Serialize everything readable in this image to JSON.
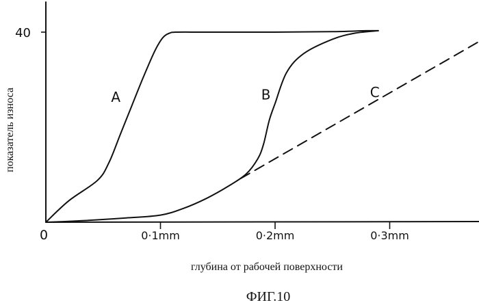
{
  "chart_data": {
    "type": "line",
    "title": "ФИГ.10",
    "xlabel": "глубина от рабочей поверхности",
    "ylabel": "показатель износа",
    "x_tick_labels": [
      "0",
      "0·1mm",
      "0·2mm",
      "0·3mm"
    ],
    "x_ticks": [
      0,
      0.1,
      0.2,
      0.3
    ],
    "y_tick_labels": [
      "40"
    ],
    "y_ticks": [
      40
    ],
    "xlim": [
      0,
      0.38
    ],
    "ylim": [
      0,
      45
    ],
    "grid": false,
    "legend": "none",
    "series": [
      {
        "name": "A",
        "style": "solid",
        "label_at": [
          0.061,
          25.3
        ],
        "x": [
          0,
          0.02,
          0.045,
          0.055,
          0.065,
          0.075,
          0.085,
          0.095,
          0.102,
          0.108,
          0.115,
          0.14,
          0.2,
          0.25,
          0.28,
          0.29
        ],
        "y": [
          0,
          4.5,
          8.8,
          12.5,
          18.5,
          24.5,
          30.5,
          36.0,
          38.8,
          39.8,
          40.0,
          40.0,
          40.0,
          40.1,
          40.3,
          40.3
        ]
      },
      {
        "name": "B",
        "style": "solid",
        "label_at": [
          0.192,
          25.8
        ],
        "x": [
          0,
          0.03,
          0.07,
          0.1,
          0.12,
          0.14,
          0.16,
          0.175,
          0.185,
          0.19,
          0.195,
          0.2,
          0.21,
          0.225,
          0.25,
          0.27,
          0.29
        ],
        "y": [
          0,
          0.3,
          0.9,
          1.5,
          2.9,
          5.0,
          7.7,
          10.2,
          13.4,
          16.5,
          21.5,
          25.0,
          31.5,
          35.5,
          38.5,
          39.8,
          40.3
        ]
      },
      {
        "name": "C",
        "style": "dashed",
        "label_at": [
          0.287,
          26.3
        ],
        "x": [
          0.17,
          0.38
        ],
        "y": [
          9.2,
          38.3
        ]
      }
    ]
  }
}
